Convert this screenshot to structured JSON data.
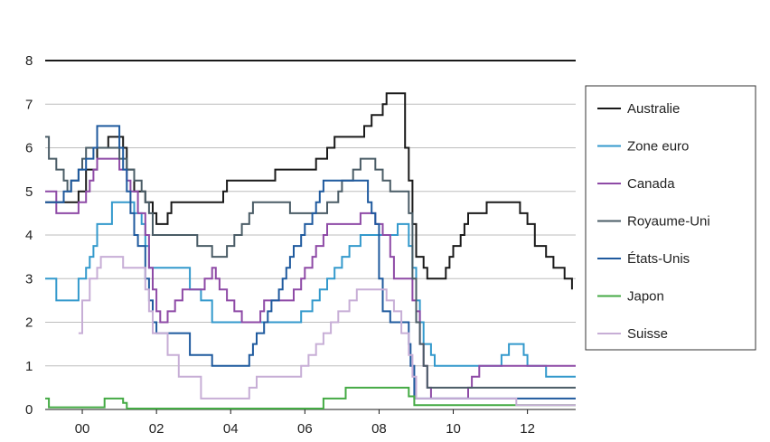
{
  "chart_data": {
    "type": "line",
    "step": true,
    "title": "",
    "xlabel": "",
    "ylabel": "",
    "x_ticks": [
      {
        "year": 2000,
        "label": "00"
      },
      {
        "year": 2002,
        "label": "02"
      },
      {
        "year": 2004,
        "label": "04"
      },
      {
        "year": 2006,
        "label": "06"
      },
      {
        "year": 2008,
        "label": "08"
      },
      {
        "year": 2010,
        "label": "10"
      },
      {
        "year": 2012,
        "label": "12"
      }
    ],
    "y_ticks": [
      "0",
      "1",
      "2",
      "3",
      "4",
      "5",
      "6",
      "7",
      "8"
    ],
    "xlim": [
      1999.0,
      2013.3
    ],
    "ylim": [
      0,
      8
    ],
    "grid": true,
    "legend_position": "right",
    "series": [
      {
        "name": "Australie",
        "color": "#1a1a1a",
        "points": [
          [
            1999.0,
            4.75
          ],
          [
            1999.9,
            5.0
          ],
          [
            2000.1,
            5.5
          ],
          [
            2000.4,
            6.0
          ],
          [
            2000.7,
            6.25
          ],
          [
            2001.1,
            6.0
          ],
          [
            2001.2,
            5.5
          ],
          [
            2001.4,
            5.0
          ],
          [
            2001.7,
            4.75
          ],
          [
            2001.9,
            4.5
          ],
          [
            2002.0,
            4.25
          ],
          [
            2002.3,
            4.5
          ],
          [
            2002.4,
            4.75
          ],
          [
            2003.8,
            5.0
          ],
          [
            2003.9,
            5.25
          ],
          [
            2005.2,
            5.5
          ],
          [
            2006.3,
            5.75
          ],
          [
            2006.6,
            6.0
          ],
          [
            2006.8,
            6.25
          ],
          [
            2007.6,
            6.5
          ],
          [
            2007.8,
            6.75
          ],
          [
            2008.1,
            7.0
          ],
          [
            2008.2,
            7.25
          ],
          [
            2008.7,
            6.0
          ],
          [
            2008.8,
            5.25
          ],
          [
            2008.9,
            4.25
          ],
          [
            2009.0,
            3.5
          ],
          [
            2009.2,
            3.25
          ],
          [
            2009.3,
            3.0
          ],
          [
            2009.8,
            3.25
          ],
          [
            2009.9,
            3.5
          ],
          [
            2010.0,
            3.75
          ],
          [
            2010.2,
            4.0
          ],
          [
            2010.3,
            4.25
          ],
          [
            2010.4,
            4.5
          ],
          [
            2010.9,
            4.75
          ],
          [
            2011.8,
            4.5
          ],
          [
            2012.0,
            4.25
          ],
          [
            2012.2,
            3.75
          ],
          [
            2012.5,
            3.5
          ],
          [
            2012.7,
            3.25
          ],
          [
            2013.0,
            3.0
          ],
          [
            2013.2,
            2.75
          ]
        ]
      },
      {
        "name": "Zone euro",
        "color": "#3399cc",
        "points": [
          [
            1999.0,
            3.0
          ],
          [
            1999.3,
            2.5
          ],
          [
            1999.9,
            3.0
          ],
          [
            2000.1,
            3.25
          ],
          [
            2000.2,
            3.5
          ],
          [
            2000.3,
            3.75
          ],
          [
            2000.4,
            4.25
          ],
          [
            2000.8,
            4.75
          ],
          [
            2001.4,
            4.5
          ],
          [
            2001.6,
            4.25
          ],
          [
            2001.7,
            3.75
          ],
          [
            2001.8,
            3.25
          ],
          [
            2002.9,
            2.75
          ],
          [
            2003.2,
            2.5
          ],
          [
            2003.5,
            2.0
          ],
          [
            2005.9,
            2.25
          ],
          [
            2006.2,
            2.5
          ],
          [
            2006.4,
            2.75
          ],
          [
            2006.6,
            3.0
          ],
          [
            2006.8,
            3.25
          ],
          [
            2007.0,
            3.5
          ],
          [
            2007.2,
            3.75
          ],
          [
            2007.5,
            4.0
          ],
          [
            2008.5,
            4.25
          ],
          [
            2008.8,
            3.75
          ],
          [
            2008.9,
            3.25
          ],
          [
            2009.0,
            2.5
          ],
          [
            2009.1,
            2.0
          ],
          [
            2009.2,
            1.5
          ],
          [
            2009.4,
            1.25
          ],
          [
            2009.5,
            1.0
          ],
          [
            2011.3,
            1.25
          ],
          [
            2011.5,
            1.5
          ],
          [
            2011.9,
            1.25
          ],
          [
            2012.0,
            1.0
          ],
          [
            2012.5,
            0.75
          ],
          [
            2013.3,
            0.75
          ]
        ]
      },
      {
        "name": "Canada",
        "color": "#8e4aa6",
        "points": [
          [
            1999.0,
            5.0
          ],
          [
            1999.3,
            4.5
          ],
          [
            1999.9,
            4.75
          ],
          [
            2000.1,
            5.0
          ],
          [
            2000.2,
            5.25
          ],
          [
            2000.3,
            5.5
          ],
          [
            2000.4,
            5.75
          ],
          [
            2001.0,
            5.5
          ],
          [
            2001.2,
            5.25
          ],
          [
            2001.3,
            5.0
          ],
          [
            2001.5,
            4.5
          ],
          [
            2001.7,
            4.0
          ],
          [
            2001.8,
            3.25
          ],
          [
            2001.9,
            2.75
          ],
          [
            2002.0,
            2.25
          ],
          [
            2002.1,
            2.0
          ],
          [
            2002.3,
            2.25
          ],
          [
            2002.5,
            2.5
          ],
          [
            2002.7,
            2.75
          ],
          [
            2003.3,
            3.0
          ],
          [
            2003.5,
            3.25
          ],
          [
            2003.6,
            3.0
          ],
          [
            2003.7,
            2.75
          ],
          [
            2003.9,
            2.5
          ],
          [
            2004.1,
            2.25
          ],
          [
            2004.3,
            2.0
          ],
          [
            2004.8,
            2.25
          ],
          [
            2004.9,
            2.5
          ],
          [
            2005.7,
            2.75
          ],
          [
            2005.9,
            3.0
          ],
          [
            2006.0,
            3.25
          ],
          [
            2006.2,
            3.5
          ],
          [
            2006.3,
            3.75
          ],
          [
            2006.5,
            4.0
          ],
          [
            2006.6,
            4.25
          ],
          [
            2007.5,
            4.5
          ],
          [
            2007.9,
            4.25
          ],
          [
            2008.1,
            4.0
          ],
          [
            2008.3,
            3.5
          ],
          [
            2008.4,
            3.0
          ],
          [
            2008.9,
            2.5
          ],
          [
            2009.0,
            2.25
          ],
          [
            2009.1,
            1.5
          ],
          [
            2009.2,
            1.0
          ],
          [
            2009.3,
            0.5
          ],
          [
            2009.4,
            0.25
          ],
          [
            2010.4,
            0.5
          ],
          [
            2010.5,
            0.75
          ],
          [
            2010.7,
            1.0
          ],
          [
            2013.3,
            1.0
          ]
        ]
      },
      {
        "name": "Royaume-Uni",
        "color": "#4a5c66",
        "points": [
          [
            1999.0,
            6.25
          ],
          [
            1999.1,
            5.75
          ],
          [
            1999.3,
            5.5
          ],
          [
            1999.5,
            5.25
          ],
          [
            1999.6,
            5.0
          ],
          [
            1999.7,
            5.25
          ],
          [
            1999.9,
            5.5
          ],
          [
            2000.0,
            5.75
          ],
          [
            2000.1,
            6.0
          ],
          [
            2001.0,
            5.75
          ],
          [
            2001.2,
            5.5
          ],
          [
            2001.4,
            5.25
          ],
          [
            2001.6,
            5.0
          ],
          [
            2001.7,
            4.75
          ],
          [
            2001.8,
            4.5
          ],
          [
            2001.9,
            4.0
          ],
          [
            2003.1,
            3.75
          ],
          [
            2003.5,
            3.5
          ],
          [
            2003.9,
            3.75
          ],
          [
            2004.1,
            4.0
          ],
          [
            2004.3,
            4.25
          ],
          [
            2004.5,
            4.5
          ],
          [
            2004.6,
            4.75
          ],
          [
            2005.6,
            4.5
          ],
          [
            2006.6,
            4.75
          ],
          [
            2006.9,
            5.0
          ],
          [
            2007.0,
            5.25
          ],
          [
            2007.3,
            5.5
          ],
          [
            2007.5,
            5.75
          ],
          [
            2007.9,
            5.5
          ],
          [
            2008.1,
            5.25
          ],
          [
            2008.3,
            5.0
          ],
          [
            2008.8,
            4.5
          ],
          [
            2008.9,
            3.0
          ],
          [
            2009.0,
            2.0
          ],
          [
            2009.1,
            1.5
          ],
          [
            2009.2,
            1.0
          ],
          [
            2009.3,
            0.5
          ],
          [
            2013.3,
            0.5
          ]
        ]
      },
      {
        "name": "États-Unis",
        "color": "#1f5a9e",
        "points": [
          [
            1999.0,
            4.75
          ],
          [
            1999.5,
            5.0
          ],
          [
            1999.7,
            5.25
          ],
          [
            1999.9,
            5.5
          ],
          [
            2000.1,
            5.75
          ],
          [
            2000.3,
            6.0
          ],
          [
            2000.4,
            6.5
          ],
          [
            2001.0,
            6.0
          ],
          [
            2001.1,
            5.5
          ],
          [
            2001.2,
            5.0
          ],
          [
            2001.3,
            4.5
          ],
          [
            2001.4,
            4.0
          ],
          [
            2001.5,
            3.75
          ],
          [
            2001.7,
            3.0
          ],
          [
            2001.8,
            2.5
          ],
          [
            2001.9,
            2.0
          ],
          [
            2002.0,
            1.75
          ],
          [
            2002.9,
            1.25
          ],
          [
            2003.5,
            1.0
          ],
          [
            2004.5,
            1.25
          ],
          [
            2004.6,
            1.5
          ],
          [
            2004.7,
            1.75
          ],
          [
            2004.9,
            2.0
          ],
          [
            2005.0,
            2.25
          ],
          [
            2005.1,
            2.5
          ],
          [
            2005.3,
            2.75
          ],
          [
            2005.4,
            3.0
          ],
          [
            2005.5,
            3.25
          ],
          [
            2005.6,
            3.5
          ],
          [
            2005.7,
            3.75
          ],
          [
            2005.9,
            4.0
          ],
          [
            2006.0,
            4.25
          ],
          [
            2006.2,
            4.5
          ],
          [
            2006.3,
            4.75
          ],
          [
            2006.4,
            5.0
          ],
          [
            2006.5,
            5.25
          ],
          [
            2007.7,
            4.75
          ],
          [
            2007.8,
            4.5
          ],
          [
            2007.9,
            4.25
          ],
          [
            2008.0,
            3.0
          ],
          [
            2008.1,
            2.25
          ],
          [
            2008.3,
            2.0
          ],
          [
            2008.8,
            1.5
          ],
          [
            2008.85,
            1.0
          ],
          [
            2008.95,
            0.25
          ],
          [
            2013.3,
            0.25
          ]
        ]
      },
      {
        "name": "Japon",
        "color": "#44aa44",
        "points": [
          [
            1999.0,
            0.25
          ],
          [
            1999.1,
            0.05
          ],
          [
            2000.6,
            0.25
          ],
          [
            2001.1,
            0.15
          ],
          [
            2001.2,
            0.02
          ],
          [
            2006.5,
            0.25
          ],
          [
            2007.1,
            0.5
          ],
          [
            2008.8,
            0.3
          ],
          [
            2008.95,
            0.1
          ],
          [
            2013.3,
            0.1
          ]
        ]
      },
      {
        "name": "Suisse",
        "color": "#c7aed6",
        "points": [
          [
            1999.9,
            1.75
          ],
          [
            2000.0,
            2.5
          ],
          [
            2000.2,
            3.0
          ],
          [
            2000.4,
            3.25
          ],
          [
            2000.5,
            3.5
          ],
          [
            2001.1,
            3.25
          ],
          [
            2001.7,
            2.75
          ],
          [
            2001.8,
            2.25
          ],
          [
            2001.9,
            1.75
          ],
          [
            2002.3,
            1.25
          ],
          [
            2002.6,
            0.75
          ],
          [
            2003.2,
            0.25
          ],
          [
            2004.5,
            0.5
          ],
          [
            2004.7,
            0.75
          ],
          [
            2005.9,
            1.0
          ],
          [
            2006.1,
            1.25
          ],
          [
            2006.3,
            1.5
          ],
          [
            2006.5,
            1.75
          ],
          [
            2006.7,
            2.0
          ],
          [
            2006.9,
            2.25
          ],
          [
            2007.2,
            2.5
          ],
          [
            2007.4,
            2.75
          ],
          [
            2008.2,
            2.5
          ],
          [
            2008.4,
            2.25
          ],
          [
            2008.6,
            1.75
          ],
          [
            2008.8,
            1.25
          ],
          [
            2008.9,
            0.75
          ],
          [
            2009.0,
            0.25
          ],
          [
            2011.7,
            0.1
          ],
          [
            2013.3,
            0.1
          ]
        ]
      }
    ]
  }
}
